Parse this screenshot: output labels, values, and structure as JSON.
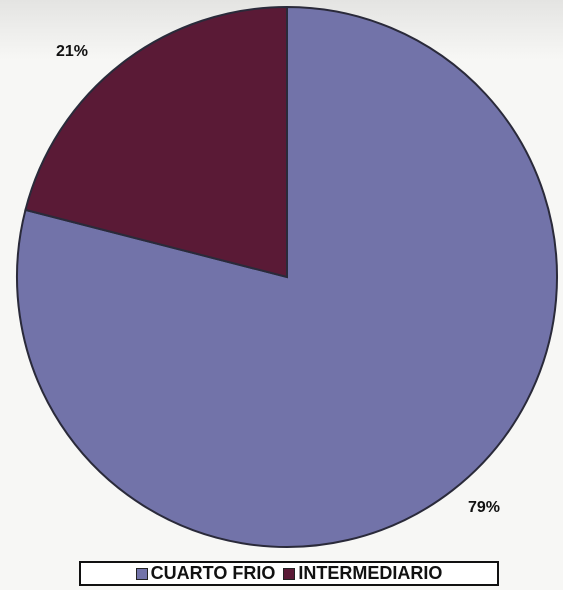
{
  "chart_data": {
    "type": "pie",
    "title": "",
    "slices": [
      {
        "name": "CUARTO FRIO",
        "value": 79,
        "label": "79%",
        "color": "#7273a9"
      },
      {
        "name": "INTERMEDIARIO",
        "value": 21,
        "label": "21%",
        "color": "#5a1a36"
      }
    ],
    "legend_position": "bottom"
  }
}
